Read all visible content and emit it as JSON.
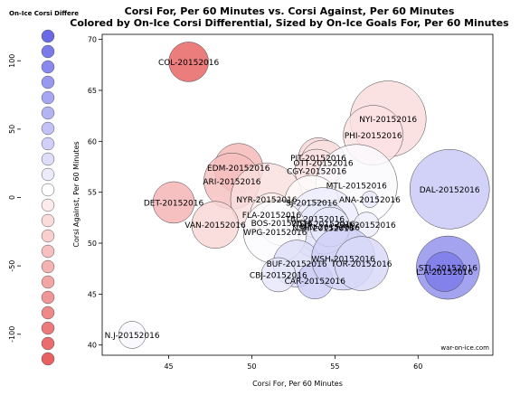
{
  "chart_data": {
    "type": "scatter",
    "title_line1": "Corsi For, Per 60 Minutes vs. Corsi Against, Per 60 Minutes",
    "title_line2": "Colored by On-Ice Corsi Differential, Sized by On-Ice Goals For, Per 60 Minutes",
    "xlabel": "Corsi For, Per 60 Minutes",
    "ylabel": "Corsi Against, Per 60 Minutes",
    "xlim": [
      41,
      64.5
    ],
    "ylim": [
      39,
      70.5
    ],
    "x_ticks": [
      45,
      50,
      55,
      60
    ],
    "y_ticks": [
      40,
      45,
      50,
      55,
      60,
      65,
      70
    ],
    "watermark": "war-on-ice.com",
    "grid": false,
    "legend": {
      "title": "On-Ice Corsi Differe",
      "ticks": [
        100,
        50,
        0,
        -50,
        -100
      ],
      "range": [
        -118,
        118
      ],
      "colors": [
        "#6a6ae6",
        "#7a7aea",
        "#8888ee",
        "#9898f0",
        "#a6a6f2",
        "#b4b4f5",
        "#c2c2f7",
        "#d0d0f9",
        "#dedefb",
        "#ececfd",
        "#ffffff",
        "#fdeaea",
        "#fbdcdc",
        "#f9cece",
        "#f7c0c0",
        "#f5b2b2",
        "#f3a4a4",
        "#f19696",
        "#ef8888",
        "#ed7a7a",
        "#eb6c6c",
        "#e86060"
      ]
    },
    "points": [
      {
        "label": "COL-20152016",
        "x": 46.2,
        "y": 67.8,
        "size": 22,
        "diff": -21.6
      },
      {
        "label": "NYI-20152016",
        "x": 58.2,
        "y": 62.2,
        "size": 42,
        "diff": -4.0
      },
      {
        "label": "PHI-20152016",
        "x": 57.3,
        "y": 60.6,
        "size": 33,
        "diff": -3.3
      },
      {
        "label": "EDM-20152016",
        "x": 49.2,
        "y": 57.4,
        "size": 27,
        "diff": -8.2
      },
      {
        "label": "ARI-20152016",
        "x": 48.8,
        "y": 56.1,
        "size": 31,
        "diff": -7.3
      },
      {
        "label": "PIT-20152016",
        "x": 54.0,
        "y": 58.4,
        "size": 22,
        "diff": -4.4
      },
      {
        "label": "OTT-20152016",
        "x": 54.3,
        "y": 57.9,
        "size": 25,
        "diff": -3.6
      },
      {
        "label": "CGY-20152016",
        "x": 53.9,
        "y": 57.1,
        "size": 24,
        "diff": -3.2
      },
      {
        "label": "NYR-20152016",
        "x": 50.9,
        "y": 54.3,
        "size": 40,
        "diff": -3.7
      },
      {
        "label": "DET-20152016",
        "x": 45.3,
        "y": 54.0,
        "size": 23,
        "diff": -8.7
      },
      {
        "label": "MTL-20152016",
        "x": 56.3,
        "y": 55.7,
        "size": 45,
        "diff": 0.6
      },
      {
        "label": "DAL-20152016",
        "x": 61.9,
        "y": 55.3,
        "size": 44,
        "diff": 6.6
      },
      {
        "label": "ANA-20152016",
        "x": 57.1,
        "y": 54.3,
        "size": 9,
        "diff": 2.8
      },
      {
        "label": "SJ-20152016",
        "x": 53.6,
        "y": 54.0,
        "size": 30,
        "diff": -0.4
      },
      {
        "label": "FLA-20152016",
        "x": 51.2,
        "y": 52.8,
        "size": 24,
        "diff": -1.6
      },
      {
        "label": "BOS-20152016",
        "x": 51.8,
        "y": 52.0,
        "size": 25,
        "diff": -0.6
      },
      {
        "label": "VAN-20152016",
        "x": 47.8,
        "y": 51.8,
        "size": 26,
        "diff": -4.8
      },
      {
        "label": "WSH-20152016",
        "x": 54.3,
        "y": 51.9,
        "size": 40,
        "diff": 2.4
      },
      {
        "label": "TBL-20152016",
        "x": 53.8,
        "y": 52.4,
        "size": 21,
        "diff": 1.6
      },
      {
        "label": "NSH-20152016",
        "x": 54.3,
        "y": 51.5,
        "size": 29,
        "diff": 2.9
      },
      {
        "label": "MIN-20152016",
        "x": 54.7,
        "y": 51.6,
        "size": 22,
        "diff": 2.8
      },
      {
        "label": "CHI-20152016",
        "x": 56.9,
        "y": 51.8,
        "size": 14,
        "diff": 2.0
      },
      {
        "label": "WPG-20152016",
        "x": 51.4,
        "y": 51.1,
        "size": 35,
        "diff": 0.5
      },
      {
        "label": "BUF-20152016",
        "x": 52.7,
        "y": 48.0,
        "size": 26,
        "diff": 4.1
      },
      {
        "label": "CBJ-20152016",
        "x": 51.6,
        "y": 46.9,
        "size": 19,
        "diff": 2.9
      },
      {
        "label": "CAR-20152016",
        "x": 53.8,
        "y": 46.3,
        "size": 20,
        "diff": 6.1
      },
      {
        "label": "WSH-20152016",
        "x": 55.5,
        "y": 48.5,
        "size": 35,
        "diff": 5.8
      },
      {
        "label": "TOR-20152016",
        "x": 56.6,
        "y": 48.0,
        "size": 30,
        "diff": 4.7
      },
      {
        "label": "STL-20152016",
        "x": 61.8,
        "y": 47.6,
        "size": 35,
        "diff": 13.5
      },
      {
        "label": "L.A-20152016",
        "x": 61.6,
        "y": 47.2,
        "size": 22,
        "diff": 16.0
      },
      {
        "label": "N.J-20152016",
        "x": 42.8,
        "y": 41.0,
        "size": 15,
        "diff": 0.7
      }
    ]
  }
}
